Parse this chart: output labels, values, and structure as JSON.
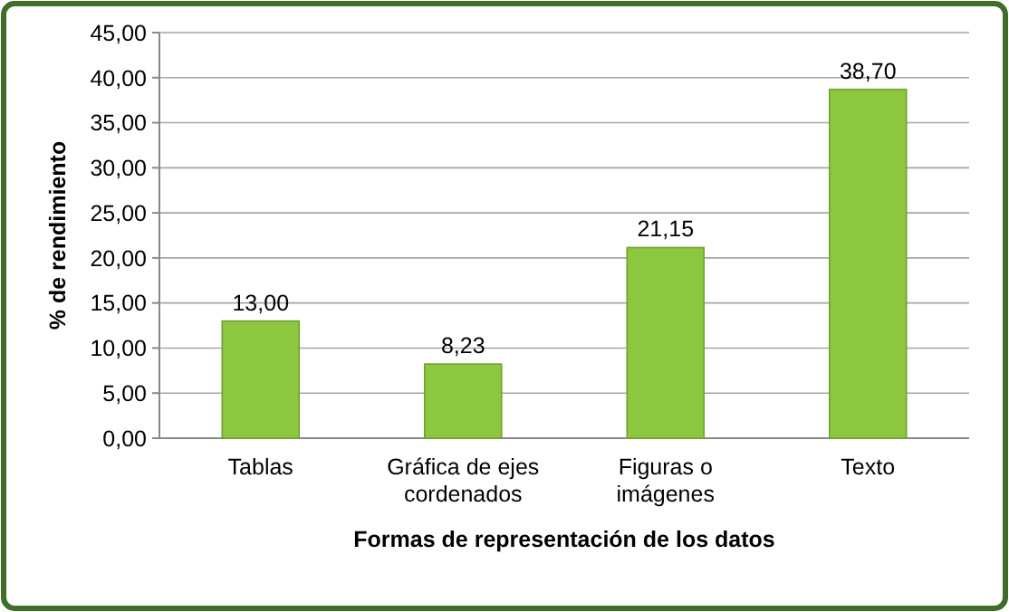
{
  "chart_data": {
    "type": "bar",
    "xlabel": "Formas de representación de los datos",
    "ylabel": "% de rendimiento",
    "categories": [
      "Tablas",
      "Gráfica de ejes cordenados",
      "Figuras o imágenes",
      "Texto"
    ],
    "values": [
      13.0,
      8.23,
      21.15,
      38.7
    ],
    "value_labels": [
      "13,00",
      "8,23",
      "21,15",
      "38,70"
    ],
    "color": "#8dc63f",
    "ylim": [
      0,
      45
    ],
    "yticks": [
      {
        "value": 0,
        "label": "0,00"
      },
      {
        "value": 5,
        "label": "5,00"
      },
      {
        "value": 10,
        "label": "10,00"
      },
      {
        "value": 15,
        "label": "15,00"
      },
      {
        "value": 20,
        "label": "20,00"
      },
      {
        "value": 25,
        "label": "25,00"
      },
      {
        "value": 30,
        "label": "30,00"
      },
      {
        "value": 35,
        "label": "35,00"
      },
      {
        "value": 40,
        "label": "40,00"
      },
      {
        "value": 45,
        "label": "45,00"
      }
    ],
    "grid": "y"
  }
}
